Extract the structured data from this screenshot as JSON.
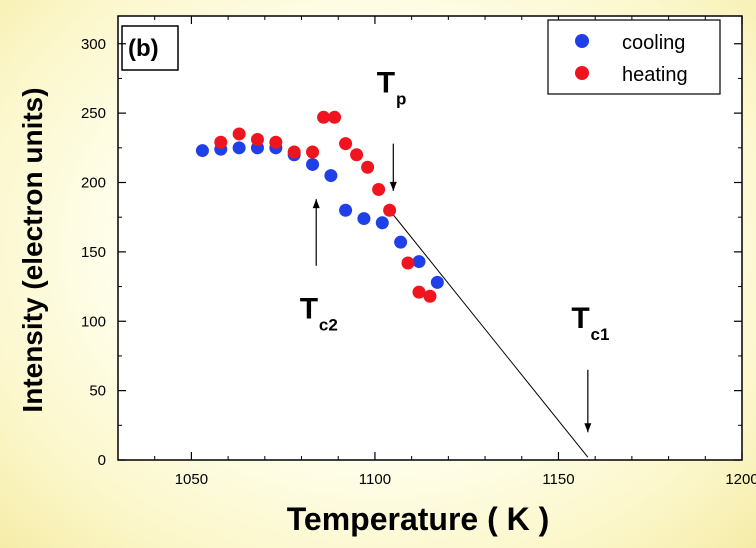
{
  "chart_data": {
    "type": "scatter",
    "panel_label": "(b)",
    "xlabel": "Temperature  ( K )",
    "ylabel": "Intensity  (electron units)",
    "xlim": [
      1030,
      1200
    ],
    "ylim": [
      0,
      320
    ],
    "x_ticks": [
      1050,
      1100,
      1150,
      1200
    ],
    "y_ticks": [
      0,
      50,
      100,
      150,
      200,
      250,
      300
    ],
    "grid": false,
    "legend_position": "top-right",
    "series": [
      {
        "name": "cooling",
        "color": "#1f3fe8",
        "x": [
          1053,
          1058,
          1063,
          1068,
          1073,
          1078,
          1083,
          1088,
          1092,
          1097,
          1102,
          1107,
          1112,
          1117
        ],
        "y": [
          223,
          224,
          225,
          225,
          225,
          220,
          213,
          205,
          180,
          174,
          171,
          157,
          143,
          128
        ]
      },
      {
        "name": "heating",
        "color": "#f0141e",
        "x": [
          1058,
          1063,
          1068,
          1073,
          1078,
          1083,
          1086,
          1089,
          1092,
          1095,
          1098,
          1101,
          1104,
          1109,
          1112,
          1115
        ],
        "y": [
          229,
          235,
          231,
          229,
          222,
          222,
          247,
          247,
          228,
          220,
          211,
          195,
          180,
          142,
          121,
          118
        ]
      }
    ],
    "fit_line": {
      "x": [
        1104,
        1158
      ],
      "y": [
        180,
        2
      ]
    },
    "annotations": [
      {
        "main": "T",
        "sub": "p",
        "arrow_x": 1105,
        "arrow_from": 228,
        "arrow_to": 194,
        "text_x": 1103,
        "text_y": 265
      },
      {
        "main": "T",
        "sub": "c2",
        "arrow_x": 1084,
        "arrow_from": 140,
        "arrow_to": 188,
        "text_x": 1082,
        "text_y": 102
      },
      {
        "main": "T",
        "sub": "c1",
        "arrow_x": 1158,
        "arrow_from": 65,
        "arrow_to": 20,
        "text_x": 1156,
        "text_y": 95
      }
    ]
  }
}
